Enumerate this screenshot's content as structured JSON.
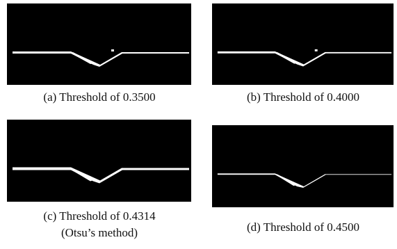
{
  "figures": [
    {
      "caption": [
        "(a) Threshold of 0.3500"
      ]
    },
    {
      "caption": [
        "(b) Threshold of 0.4000"
      ]
    },
    {
      "caption": [
        "(c) Threshold of 0.4314",
        "(Otsu’s method)"
      ]
    },
    {
      "caption": [
        "(d) Threshold of 0.4500"
      ]
    }
  ]
}
